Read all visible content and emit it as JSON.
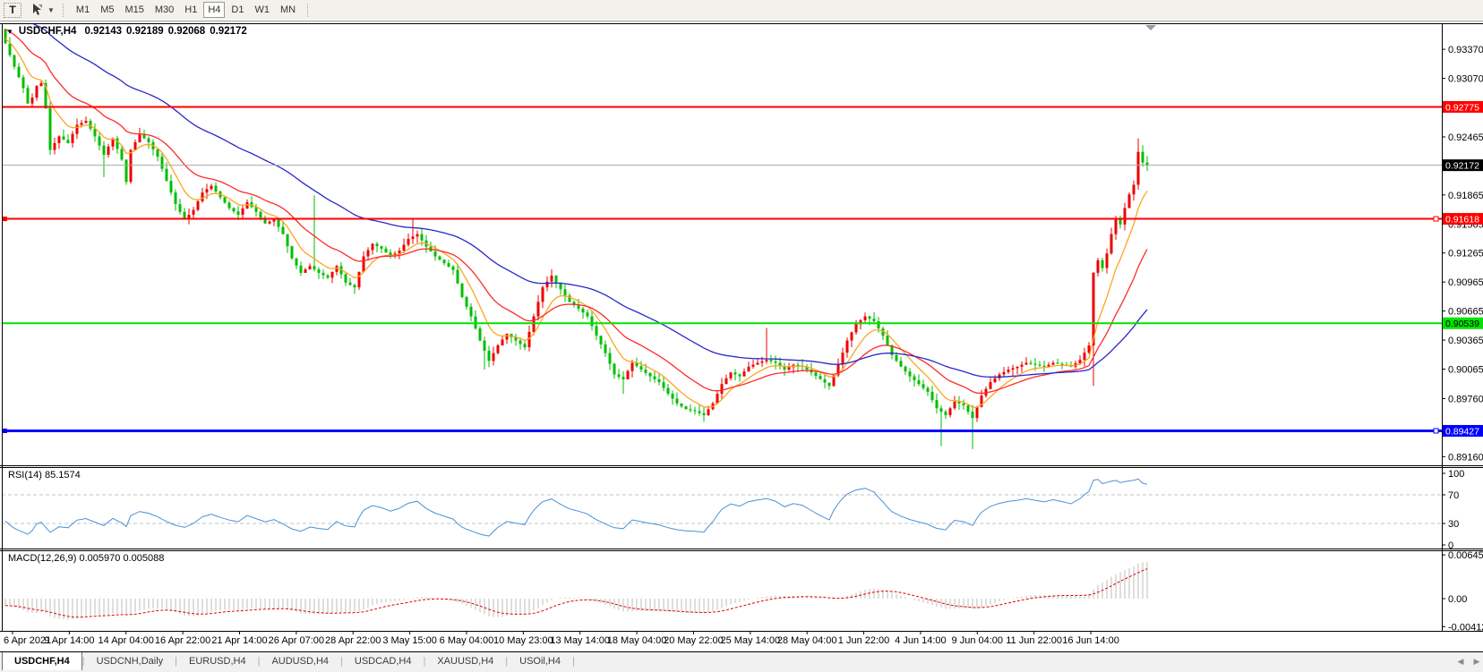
{
  "toolbar": {
    "text_tool_label": "T",
    "timeframes": [
      "M1",
      "M5",
      "M15",
      "M30",
      "H1",
      "H4",
      "D1",
      "W1",
      "MN"
    ],
    "active_timeframe": "H4"
  },
  "chart": {
    "title": "USDCHF,H4",
    "ohlc": {
      "open": "0.92143",
      "high": "0.92189",
      "low": "0.92068",
      "close": "0.92172"
    }
  },
  "price_axis": {
    "ticks": [
      "0.93370",
      "0.93070",
      "0.92465",
      "0.91865",
      "0.91565",
      "0.91265",
      "0.90965",
      "0.90665",
      "0.90365",
      "0.90065",
      "0.89760",
      "0.89160"
    ]
  },
  "chart_data": {
    "type": "candlestick",
    "symbol": "USDCHF",
    "timeframe": "H4",
    "bars": 256,
    "ylim": [
      0.8908,
      0.9363
    ],
    "first_open": 0.9358,
    "close_path_anchors": [
      [
        0,
        0.9343
      ],
      [
        2,
        0.9319
      ],
      [
        4,
        0.9297
      ],
      [
        5,
        0.9281
      ],
      [
        6,
        0.9287
      ],
      [
        7,
        0.9299
      ],
      [
        8,
        0.9302
      ],
      [
        9,
        0.9276
      ],
      [
        10,
        0.9233
      ],
      [
        12,
        0.9247
      ],
      [
        14,
        0.924
      ],
      [
        16,
        0.9259
      ],
      [
        18,
        0.9263
      ],
      [
        20,
        0.9247
      ],
      [
        22,
        0.9228
      ],
      [
        24,
        0.9245
      ],
      [
        26,
        0.9223
      ],
      [
        27,
        0.92
      ],
      [
        28,
        0.9233
      ],
      [
        30,
        0.9249
      ],
      [
        32,
        0.9241
      ],
      [
        34,
        0.9226
      ],
      [
        36,
        0.9201
      ],
      [
        38,
        0.9177
      ],
      [
        40,
        0.9161
      ],
      [
        42,
        0.9171
      ],
      [
        44,
        0.9189
      ],
      [
        46,
        0.9196
      ],
      [
        48,
        0.9184
      ],
      [
        50,
        0.9173
      ],
      [
        52,
        0.9166
      ],
      [
        54,
        0.9179
      ],
      [
        56,
        0.9169
      ],
      [
        58,
        0.9157
      ],
      [
        60,
        0.9161
      ],
      [
        62,
        0.9146
      ],
      [
        64,
        0.9121
      ],
      [
        66,
        0.9106
      ],
      [
        68,
        0.9113
      ],
      [
        70,
        0.9106
      ],
      [
        72,
        0.9101
      ],
      [
        74,
        0.9113
      ],
      [
        76,
        0.9096
      ],
      [
        78,
        0.9091
      ],
      [
        80,
        0.9123
      ],
      [
        82,
        0.9136
      ],
      [
        84,
        0.9131
      ],
      [
        86,
        0.9123
      ],
      [
        88,
        0.9129
      ],
      [
        90,
        0.9141
      ],
      [
        92,
        0.9146
      ],
      [
        94,
        0.9133
      ],
      [
        96,
        0.9123
      ],
      [
        98,
        0.9116
      ],
      [
        100,
        0.9109
      ],
      [
        102,
        0.9081
      ],
      [
        104,
        0.9061
      ],
      [
        106,
        0.9036
      ],
      [
        108,
        0.9015
      ],
      [
        110,
        0.9031
      ],
      [
        112,
        0.9043
      ],
      [
        114,
        0.9036
      ],
      [
        116,
        0.9029
      ],
      [
        118,
        0.9061
      ],
      [
        120,
        0.9091
      ],
      [
        122,
        0.9103
      ],
      [
        124,
        0.9089
      ],
      [
        126,
        0.9076
      ],
      [
        128,
        0.9069
      ],
      [
        130,
        0.9061
      ],
      [
        132,
        0.9041
      ],
      [
        134,
        0.9023
      ],
      [
        136,
        0.9001
      ],
      [
        138,
        0.8996
      ],
      [
        140,
        0.9013
      ],
      [
        142,
        0.9006
      ],
      [
        144,
        0.8999
      ],
      [
        146,
        0.8993
      ],
      [
        148,
        0.8981
      ],
      [
        150,
        0.8971
      ],
      [
        152,
        0.8965
      ],
      [
        154,
        0.8963
      ],
      [
        156,
        0.8959
      ],
      [
        158,
        0.8971
      ],
      [
        160,
        0.8991
      ],
      [
        162,
        0.9003
      ],
      [
        164,
        0.8999
      ],
      [
        166,
        0.9009
      ],
      [
        168,
        0.9013
      ],
      [
        170,
        0.9016
      ],
      [
        172,
        0.9013
      ],
      [
        174,
        0.9006
      ],
      [
        176,
        0.9011
      ],
      [
        178,
        0.9009
      ],
      [
        180,
        0.9003
      ],
      [
        182,
        0.8996
      ],
      [
        184,
        0.8989
      ],
      [
        186,
        0.9011
      ],
      [
        188,
        0.9036
      ],
      [
        190,
        0.9053
      ],
      [
        192,
        0.9061
      ],
      [
        194,
        0.9056
      ],
      [
        196,
        0.9041
      ],
      [
        198,
        0.9021
      ],
      [
        200,
        0.9009
      ],
      [
        202,
        0.8999
      ],
      [
        204,
        0.8991
      ],
      [
        206,
        0.8983
      ],
      [
        208,
        0.8966
      ],
      [
        210,
        0.8959
      ],
      [
        212,
        0.8973
      ],
      [
        214,
        0.8969
      ],
      [
        216,
        0.8956
      ],
      [
        218,
        0.8979
      ],
      [
        220,
        0.8993
      ],
      [
        222,
        0.9001
      ],
      [
        224,
        0.9006
      ],
      [
        226,
        0.9009
      ],
      [
        228,
        0.9013
      ],
      [
        230,
        0.9011
      ],
      [
        232,
        0.9009
      ],
      [
        234,
        0.9013
      ],
      [
        236,
        0.9011
      ],
      [
        238,
        0.9009
      ],
      [
        240,
        0.9016
      ],
      [
        242,
        0.9031
      ],
      [
        243,
        0.9106
      ],
      [
        244,
        0.9119
      ],
      [
        245,
        0.9111
      ],
      [
        246,
        0.9126
      ],
      [
        247,
        0.9146
      ],
      [
        248,
        0.9161
      ],
      [
        249,
        0.9156
      ],
      [
        250,
        0.9173
      ],
      [
        251,
        0.9187
      ],
      [
        252,
        0.9197
      ],
      [
        253,
        0.9231
      ],
      [
        254,
        0.922
      ],
      [
        255,
        0.92172
      ]
    ],
    "wick_spikes": [
      {
        "i": 22,
        "low": 0.9205
      },
      {
        "i": 69,
        "high": 0.9186
      },
      {
        "i": 91,
        "high": 0.9161
      },
      {
        "i": 107,
        "low": 0.9006
      },
      {
        "i": 138,
        "low": 0.8981
      },
      {
        "i": 170,
        "high": 0.9049
      },
      {
        "i": 209,
        "low": 0.8927
      },
      {
        "i": 216,
        "low": 0.8924
      },
      {
        "i": 243,
        "low": 0.8989
      },
      {
        "i": 253,
        "high": 0.9245
      }
    ],
    "warmup": {
      "bars": 60,
      "slope_per_bar": 0.00015
    },
    "moving_averages": [
      {
        "period": 8,
        "color": "#FFA520"
      },
      {
        "period": 21,
        "color": "#FF2A2A"
      },
      {
        "period": 55,
        "color": "#2828C8"
      }
    ],
    "colors": {
      "bull": "#EE0000",
      "bear": "#00BE00",
      "doji": "#000000"
    },
    "horizontal_lines": [
      {
        "price": 0.92775,
        "label": "0.92775",
        "color": "#FF0000",
        "width": 2,
        "label_text": "#FFFFFF",
        "handles": false
      },
      {
        "price": 0.91618,
        "label": "0.91618",
        "color": "#FF0000",
        "width": 2,
        "label_text": "#FFFFFF",
        "handles": true
      },
      {
        "price": 0.90539,
        "label": "0.90539",
        "color": "#00E400",
        "width": 2,
        "label_text": "#000000",
        "handles": false
      },
      {
        "price": 0.89427,
        "label": "0.89427",
        "color": "#0000FF",
        "width": 3,
        "label_text": "#FFFFFF",
        "handles": true
      }
    ],
    "current_price": {
      "value": 0.92172,
      "label": "0.92172",
      "line_color": "#AAAAAA",
      "badge_bg": "#000000",
      "badge_text": "#FFFFFF"
    }
  },
  "rsi_panel": {
    "name": "RSI(14)",
    "value": "85.1574",
    "period": 14,
    "axis_labels": [
      "100",
      "70",
      "30",
      "0"
    ],
    "overbought": 70,
    "oversold": 30,
    "line_color": "#4A90D9"
  },
  "macd_panel": {
    "name": "MACD(12,26,9)",
    "macd_value": "0.005970",
    "signal_value": "0.005088",
    "axis_labels": [
      "0.006451",
      "0.00",
      "-0.004129"
    ],
    "histogram_color": "#BEBEBE",
    "signal_color": "#E00000"
  },
  "time_axis": {
    "labels": [
      "6 Apr 2021",
      "9 Apr 14:00",
      "14 Apr 04:00",
      "16 Apr 22:00",
      "21 Apr 14:00",
      "26 Apr 07:00",
      "28 Apr 22:00",
      "3 May 15:00",
      "6 May 04:00",
      "10 May 23:00",
      "13 May 14:00",
      "18 May 04:00",
      "20 May 22:00",
      "25 May 14:00",
      "28 May 04:00",
      "1 Jun 22:00",
      "4 Jun 14:00",
      "9 Jun 04:00",
      "11 Jun 22:00",
      "16 Jun 14:00"
    ]
  },
  "tabs": {
    "items": [
      {
        "label": "USDCHF,H4",
        "active": true
      },
      {
        "label": "USDCNH,Daily",
        "active": false
      },
      {
        "label": "EURUSD,H4",
        "active": false
      },
      {
        "label": "AUDUSD,H4",
        "active": false
      },
      {
        "label": "USDCAD,H4",
        "active": false
      },
      {
        "label": "XAUUSD,H4",
        "active": false
      },
      {
        "label": "USOil,H4",
        "active": false
      }
    ]
  }
}
